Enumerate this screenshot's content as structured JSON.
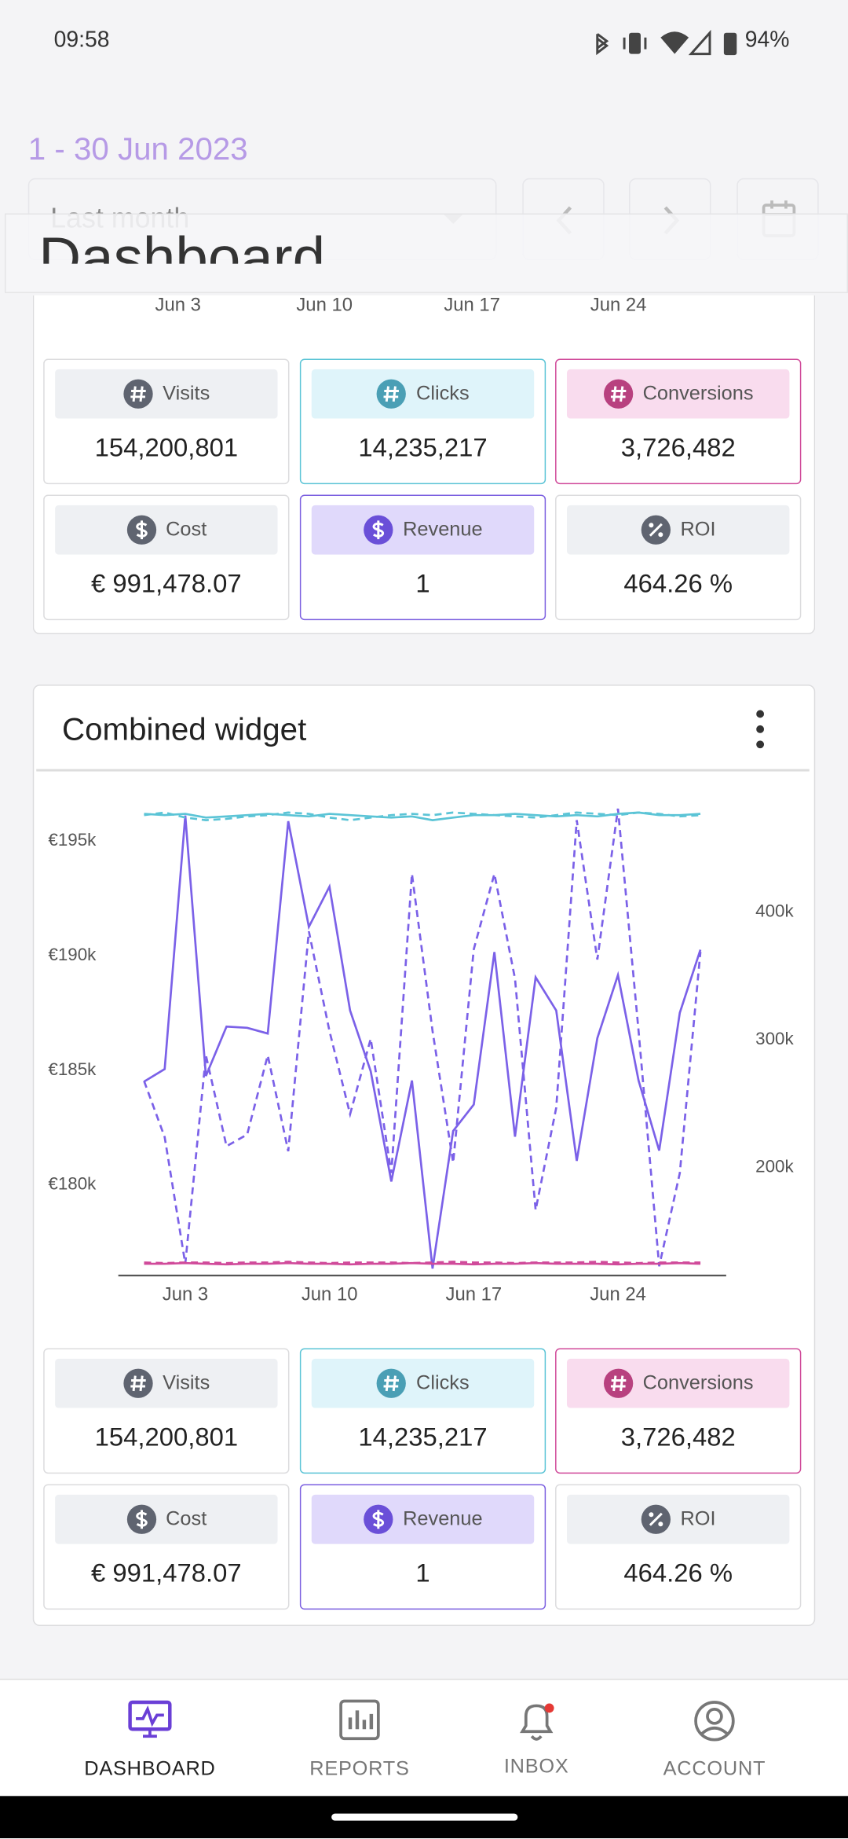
{
  "status_bar": {
    "time": "09:58",
    "battery": "94%"
  },
  "header": {
    "date_range": "1 - 30 Jun 2023",
    "period_select": "Last month",
    "title": "Dashboard"
  },
  "widgets": [
    {
      "x_labels": [
        "Jun 3",
        "Jun 10",
        "Jun 17",
        "Jun 24"
      ],
      "kpis": [
        {
          "label": "Visits",
          "value": "154,200,801"
        },
        {
          "label": "Clicks",
          "value": "14,235,217"
        },
        {
          "label": "Conversions",
          "value": "3,726,482"
        },
        {
          "label": "Cost",
          "value": "€ 991,478.07"
        },
        {
          "label": "Revenue",
          "value": "1"
        },
        {
          "label": "ROI",
          "value": "464.26 %"
        }
      ]
    },
    {
      "title": "Combined widget",
      "chart_data": {
        "type": "line",
        "categories": [
          null,
          null,
          "Jun 3",
          null,
          null,
          null,
          null,
          null,
          null,
          "Jun 10",
          null,
          null,
          null,
          null,
          null,
          null,
          "Jun 17",
          null,
          null,
          null,
          null,
          null,
          null,
          "Jun 24",
          null,
          null,
          null,
          null
        ],
        "ylim": [
          175950,
          196800
        ],
        "yticks": [
          {
            "value": 180000,
            "label": "€180k"
          },
          {
            "value": 185000,
            "label": "€185k"
          },
          {
            "value": 190000,
            "label": "€190k"
          },
          {
            "value": 195000,
            "label": "€195k"
          }
        ],
        "y2lim": [
          113800,
          488000
        ],
        "y2ticks": [
          {
            "value": 200000,
            "label": "200k"
          },
          {
            "value": 300000,
            "label": "300k"
          },
          {
            "value": 400000,
            "label": "400k"
          }
        ],
        "series": [
          {
            "color": "#7b61e8",
            "dashed": false,
            "values": [
              184400,
              184950,
              196000,
              184650,
              186800,
              186750,
              186500,
              195750,
              191150,
              192900,
              187500,
              184850,
              180050,
              184450,
              176250,
              182250,
              183400,
              190050,
              182000,
              188950,
              187500,
              180950,
              186300,
              189050,
              184450,
              181400,
              187400,
              190150
            ]
          },
          {
            "color": "#7b61e8",
            "dashed": true,
            "axis": "y2",
            "values": [
              266000,
              222000,
              123000,
              286000,
              215000,
              224000,
              286000,
              211000,
              383000,
              305000,
              240000,
              299000,
              194000,
              428000,
              305000,
              202000,
              369000,
              428000,
              346000,
              165000,
              245000,
              470000,
              361000,
              479000,
              305000,
              121000,
              194000,
              367000
            ]
          },
          {
            "color": "#5bc4d6",
            "dashed": false,
            "axis": "y2",
            "values": [
              475000,
              474000,
              475000,
              472000,
              473000,
              474000,
              475000,
              474000,
              473000,
              475000,
              474000,
              473000,
              472000,
              473000,
              470000,
              472000,
              474000,
              474000,
              475000,
              474000,
              473000,
              474000,
              473000,
              475000,
              476000,
              474000,
              474000,
              475000
            ]
          },
          {
            "color": "#5bc4d6",
            "dashed": true,
            "axis": "y2",
            "values": [
              474000,
              476000,
              472000,
              470000,
              471000,
              473000,
              474000,
              476000,
              475000,
              472000,
              470000,
              472000,
              474000,
              475000,
              474000,
              476000,
              475000,
              474000,
              473000,
              472000,
              474000,
              476000,
              475000,
              474000,
              476000,
              475000,
              473000,
              474000
            ]
          },
          {
            "color": "#d04a9a",
            "dashed": false,
            "axis": "y2",
            "values": [
              123000,
              123000,
              123500,
              123000,
              122500,
              123000,
              123000,
              123500,
              123000,
              123000,
              122500,
              123000,
              123000,
              123500,
              123000,
              123000,
              122500,
              123000,
              123000,
              123500,
              123000,
              123000,
              123000,
              122500,
              123000,
              123000,
              123500,
              123000
            ]
          },
          {
            "color": "#d04a9a",
            "dashed": true,
            "axis": "y2",
            "values": [
              124000,
              123500,
              124000,
              124000,
              123500,
              124000,
              124000,
              124500,
              124000,
              123500,
              124000,
              124000,
              124000,
              123500,
              124000,
              124500,
              124000,
              124000,
              123500,
              124000,
              124000,
              124000,
              124500,
              124000,
              123500,
              124000,
              124000,
              124000
            ]
          }
        ]
      },
      "kpis": [
        {
          "label": "Visits",
          "value": "154,200,801"
        },
        {
          "label": "Clicks",
          "value": "14,235,217"
        },
        {
          "label": "Conversions",
          "value": "3,726,482"
        },
        {
          "label": "Cost",
          "value": "€ 991,478.07"
        },
        {
          "label": "Revenue",
          "value": "1"
        },
        {
          "label": "ROI",
          "value": "464.26 %"
        }
      ]
    }
  ],
  "nav": {
    "items": [
      "DASHBOARD",
      "REPORTS",
      "INBOX",
      "ACCOUNT"
    ]
  }
}
